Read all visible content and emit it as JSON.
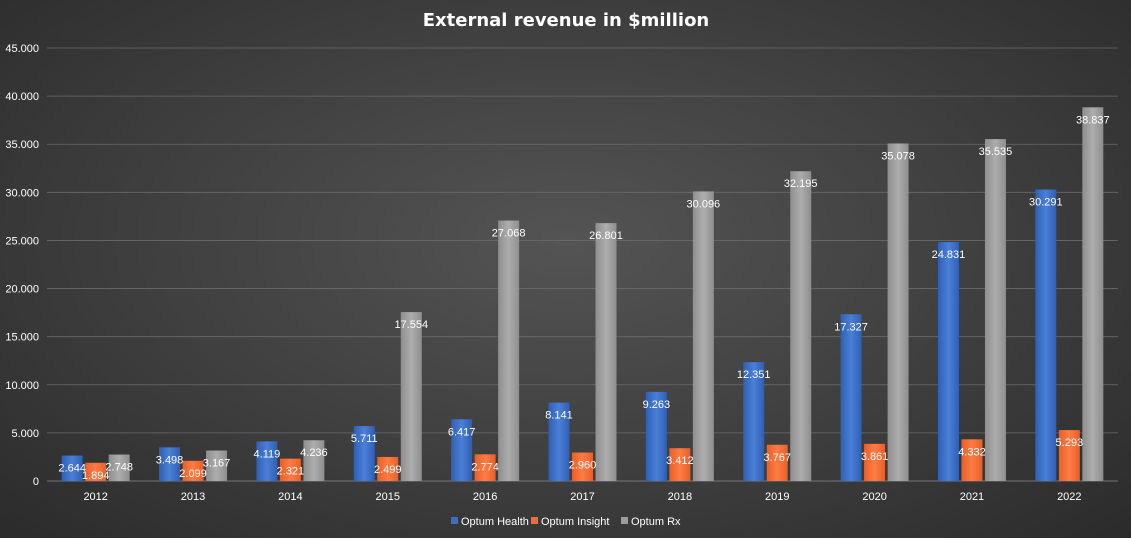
{
  "chart_data": {
    "type": "bar",
    "title": "External revenue in $million",
    "xlabel": "",
    "ylabel": "",
    "categories": [
      "2012",
      "2013",
      "2014",
      "2015",
      "2016",
      "2017",
      "2018",
      "2019",
      "2020",
      "2021",
      "2022"
    ],
    "ylim": [
      0,
      45000
    ],
    "yticks": [
      0,
      5000,
      10000,
      15000,
      20000,
      25000,
      30000,
      35000,
      40000,
      45000
    ],
    "ytick_labels": [
      "0",
      "5.000",
      "10.000",
      "15.000",
      "20.000",
      "25.000",
      "30.000",
      "35.000",
      "40.000",
      "45.000"
    ],
    "grid": true,
    "legend_position": "bottom",
    "series": [
      {
        "name": "Optum Health",
        "color": "#3a6fc9",
        "values": [
          2644,
          3498,
          4119,
          5711,
          6417,
          8141,
          9263,
          12351,
          17327,
          24831,
          30291
        ],
        "labels": [
          "2.644",
          "3.498",
          "4.119",
          "5.711",
          "6.417",
          "8.141",
          "9.263",
          "12.351",
          "17.327",
          "24.831",
          "30.291"
        ]
      },
      {
        "name": "Optum Insight",
        "color": "#f26b35",
        "values": [
          1894,
          2099,
          2321,
          2499,
          2774,
          2960,
          3412,
          3767,
          3861,
          4332,
          5293
        ],
        "labels": [
          "1.894",
          "2.099",
          "2.321",
          "2.499",
          "2.774",
          "2.960",
          "3.412",
          "3.767",
          "3.861",
          "4.332",
          "5.293"
        ]
      },
      {
        "name": "Optum Rx",
        "color": "#9c9c9c",
        "values": [
          2748,
          3167,
          4236,
          17554,
          27068,
          26801,
          30096,
          32195,
          35078,
          35535,
          38837
        ],
        "labels": [
          "2.748",
          "3.167",
          "4.236",
          "17.554",
          "27.068",
          "26.801",
          "30.096",
          "32.195",
          "35.078",
          "35.535",
          "38.837"
        ]
      }
    ]
  }
}
